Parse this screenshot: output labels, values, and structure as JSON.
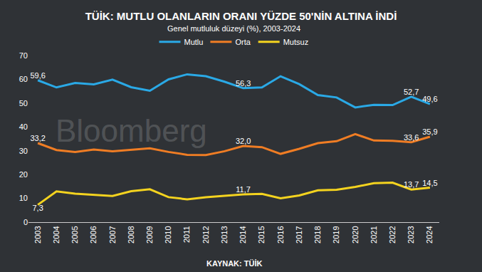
{
  "chart_data": {
    "type": "line",
    "title": "TÜİK: MUTLU OLANLARIN ORANI YÜZDE 50'NİN ALTINA İNDİ",
    "subtitle": "Genel mutluluk düzeyi (%), 2003-2024",
    "source": "KAYNAK: TÜİK",
    "watermark": "Bloomberg",
    "categories": [
      "2003",
      "2004",
      "2005",
      "2006",
      "2007",
      "2008",
      "2009",
      "2010",
      "2011",
      "2012",
      "2013",
      "2014",
      "2015",
      "2016",
      "2017",
      "2018",
      "2019",
      "2020",
      "2021",
      "2022",
      "2023",
      "2024"
    ],
    "series": [
      {
        "name": "Mutlu",
        "color": "#2aa9e6",
        "values": [
          59.6,
          56.6,
          58.5,
          57.9,
          59.9,
          56.7,
          55.2,
          60.0,
          62.1,
          61.3,
          59.0,
          56.3,
          56.6,
          61.3,
          58.0,
          53.4,
          52.4,
          48.2,
          49.3,
          49.2,
          52.7,
          49.6
        ],
        "value_labels": [
          "59,6",
          null,
          null,
          null,
          null,
          null,
          null,
          null,
          null,
          null,
          null,
          "56,3",
          null,
          null,
          null,
          null,
          null,
          null,
          null,
          null,
          "52,7",
          "49,6"
        ]
      },
      {
        "name": "Orta",
        "color": "#f07d24",
        "values": [
          33.2,
          30.3,
          29.5,
          30.5,
          29.8,
          30.3,
          31.0,
          29.5,
          28.3,
          28.2,
          29.8,
          32.0,
          31.5,
          28.7,
          30.8,
          33.2,
          34.0,
          37.0,
          34.3,
          34.2,
          33.6,
          35.9
        ],
        "value_labels": [
          "33,2",
          null,
          null,
          null,
          null,
          null,
          null,
          null,
          null,
          null,
          null,
          "32,0",
          null,
          null,
          null,
          null,
          null,
          null,
          null,
          null,
          "33,6",
          "35,9"
        ]
      },
      {
        "name": "Mutsuz",
        "color": "#f4d31f",
        "values": [
          7.3,
          12.9,
          12.0,
          11.6,
          11.0,
          13.0,
          13.8,
          10.5,
          9.6,
          10.5,
          11.2,
          11.7,
          11.9,
          10.0,
          11.2,
          13.4,
          13.6,
          14.8,
          16.4,
          16.6,
          13.7,
          14.5
        ],
        "value_labels": [
          "7,3",
          null,
          null,
          null,
          null,
          null,
          null,
          null,
          null,
          null,
          null,
          "11,7",
          null,
          null,
          null,
          null,
          null,
          null,
          null,
          null,
          "13,7",
          "14,5"
        ]
      }
    ],
    "ylim": [
      0,
      70
    ],
    "yticks": [
      0,
      10,
      20,
      30,
      40,
      50,
      60,
      70
    ],
    "grid": false,
    "legend": "top",
    "data_labels": true
  }
}
